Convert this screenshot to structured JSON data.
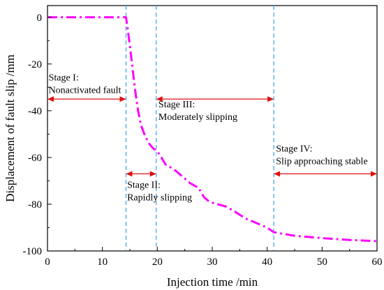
{
  "chart_data": {
    "type": "line",
    "xlabel": "Injection time /min",
    "ylabel": "Displacement of fault slip /mm",
    "xlim": [
      0,
      60
    ],
    "ylim": [
      -100,
      5
    ],
    "xticks": [
      0,
      10,
      20,
      30,
      40,
      50,
      60
    ],
    "yticks": [
      0,
      -20,
      -40,
      -60,
      -80,
      -100
    ],
    "grid": false,
    "series": [
      {
        "color": "#ff00ff",
        "line_style": "dash-dot",
        "x": [
          0,
          5,
          10,
          13.5,
          14.3,
          14.6,
          15,
          15.5,
          16,
          16.5,
          17,
          17.8,
          18.5,
          19.2,
          19.8,
          20.5,
          21.5,
          23,
          24.5,
          26,
          27.5,
          28.5,
          29.5,
          31,
          32.5,
          34,
          36,
          38,
          40,
          41.2,
          45,
          50,
          55,
          60
        ],
        "y": [
          0,
          0,
          0,
          0,
          0,
          -5,
          -12,
          -22,
          -32,
          -40,
          -46,
          -51,
          -54,
          -56,
          -57,
          -59,
          -63,
          -65,
          -68,
          -71,
          -73,
          -77,
          -79,
          -80,
          -81,
          -83,
          -86,
          -88,
          -90,
          -92,
          -93.5,
          -94.5,
          -95.3,
          -95.8
        ]
      }
    ],
    "vlines": [
      {
        "x": 14.3,
        "color": "#3aa0e8",
        "style": "dashed"
      },
      {
        "x": 19.8,
        "color": "#3aa0e8",
        "style": "dashed"
      },
      {
        "x": 41.2,
        "color": "#3aa0e8",
        "style": "dashed"
      }
    ],
    "arrows": [
      {
        "x1": 0,
        "x2": 14.3,
        "y": -35
      },
      {
        "x1": 14.3,
        "x2": 19.8,
        "y": -67
      },
      {
        "x1": 19.8,
        "x2": 41.2,
        "y": -35
      },
      {
        "x1": 41.2,
        "x2": 60,
        "y": -67
      }
    ],
    "annotations": [
      {
        "lines": [
          "Stage I:",
          "Nonactivated fault"
        ],
        "x": 0.2,
        "y": -27
      },
      {
        "lines": [
          "Stage II:",
          "Rapidly slipping"
        ],
        "x": 14.5,
        "y": -73
      },
      {
        "lines": [
          "Stage III:",
          "Moderately slipping"
        ],
        "x": 20.2,
        "y": -38.5
      },
      {
        "lines": [
          "Stage IV:",
          "Slip approaching stable"
        ],
        "x": 41.6,
        "y": -57.5
      }
    ],
    "arrow_color": "#e01010"
  }
}
